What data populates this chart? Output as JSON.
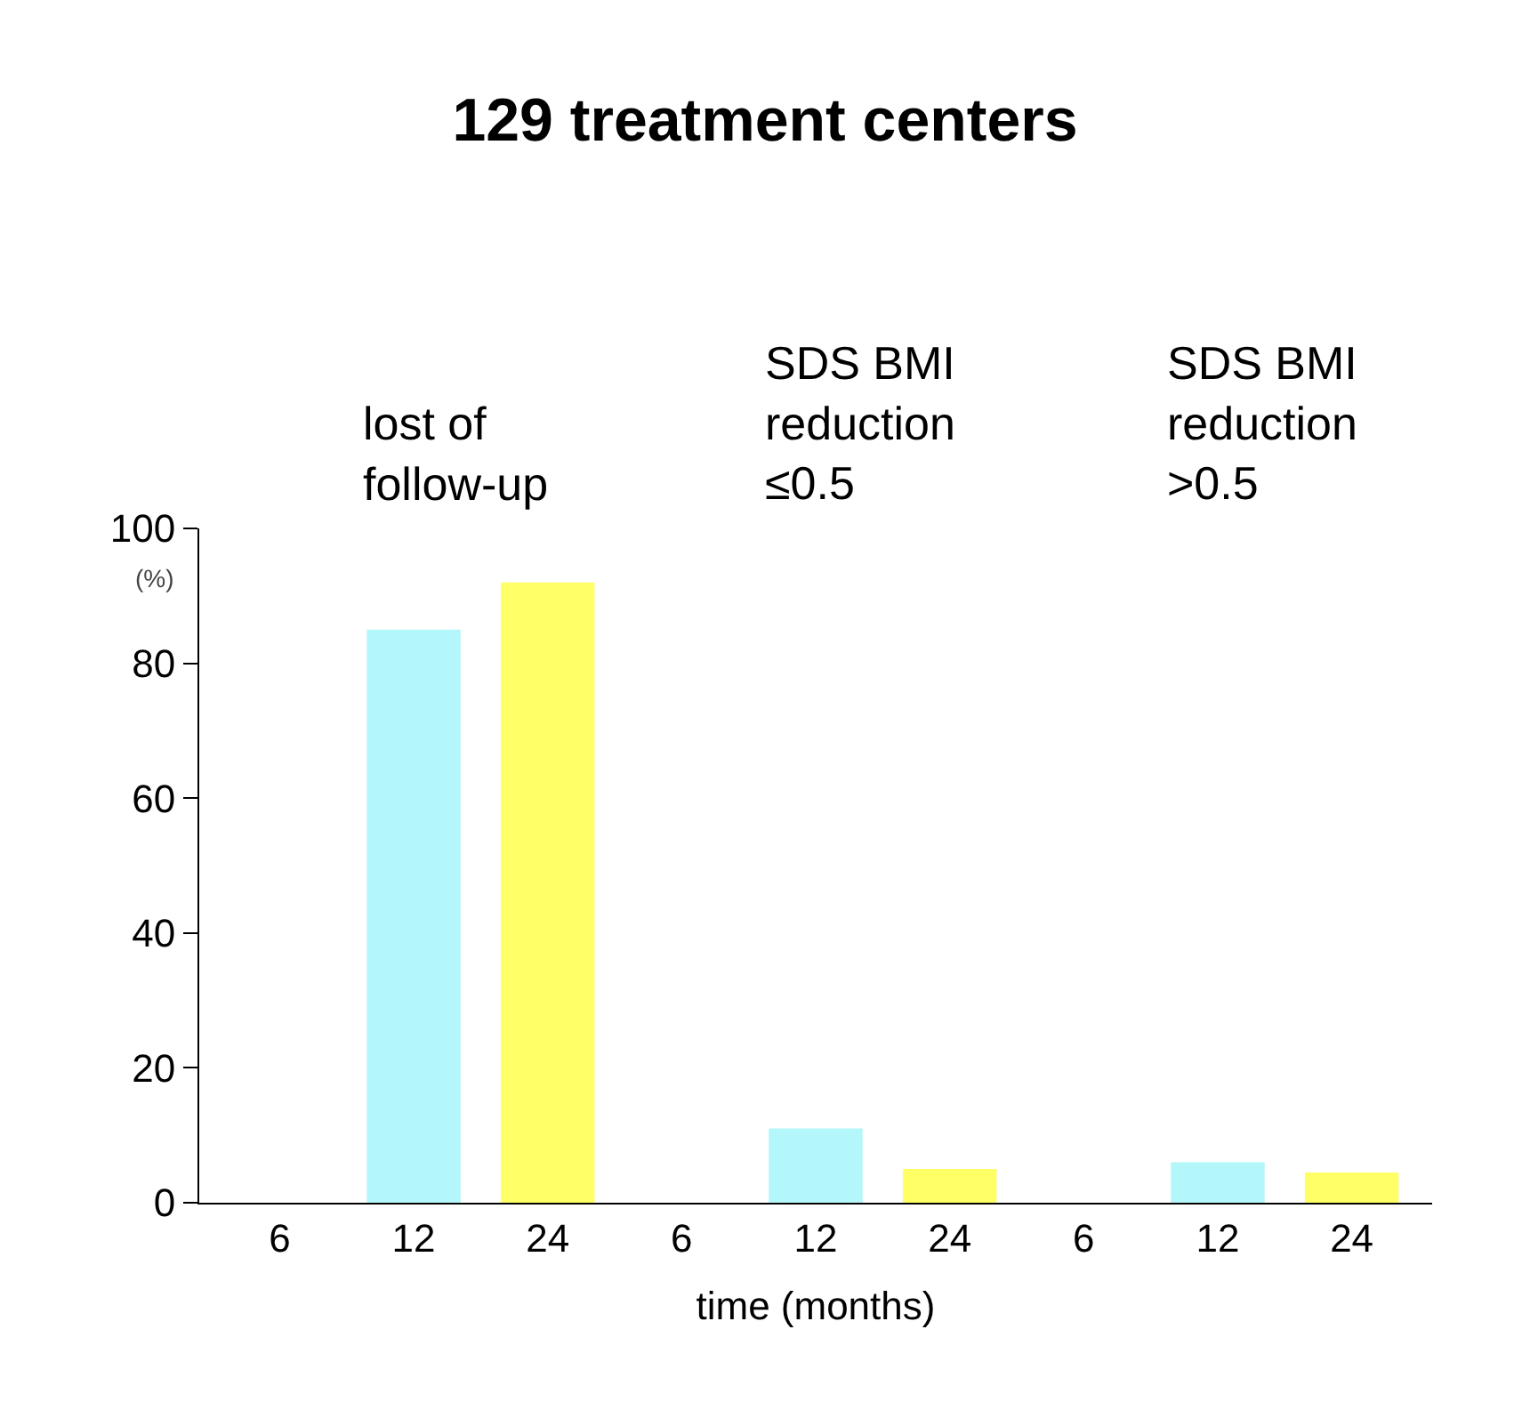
{
  "chart_data": {
    "type": "bar",
    "title": "129 treatment centers",
    "categories": [
      "6",
      "12",
      "24",
      "6",
      "12",
      "24",
      "6",
      "12",
      "24"
    ],
    "values": [
      0,
      85,
      92,
      0,
      11,
      5,
      0,
      6,
      4.5
    ],
    "colors": [
      "#b3f7fa",
      "#b3f7fa",
      "#ffff66",
      "#b3f7fa",
      "#b3f7fa",
      "#ffff66",
      "#b3f7fa",
      "#b3f7fa",
      "#ffff66"
    ],
    "ylabel": "(%)",
    "xlabel": "time (months)",
    "ylim": [
      0,
      100
    ],
    "yticks": [
      0,
      20,
      40,
      60,
      80,
      100
    ],
    "annotations": [
      "lost of\nfollow-up",
      "SDS BMI\nreduction\n≤0.5",
      "SDS BMI\nreduction\n>0.5"
    ],
    "grid": false,
    "legend": false
  }
}
